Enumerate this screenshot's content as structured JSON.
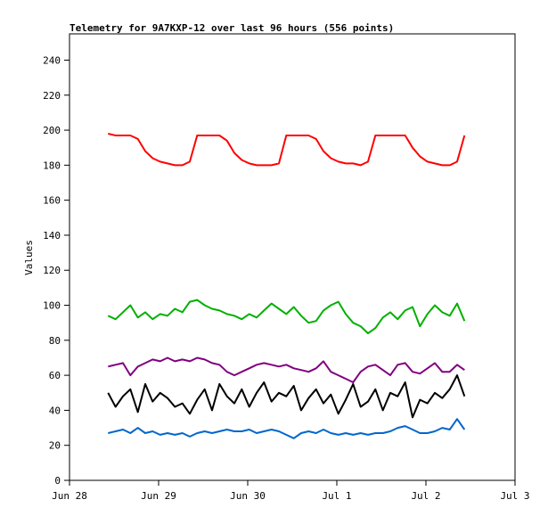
{
  "chart_data": {
    "type": "line",
    "title": "Telemetry for 9A7KXP-12 over last 96 hours (556 points)",
    "xlabel": "",
    "ylabel": "Values",
    "ylim": [
      0,
      255
    ],
    "yticks": [
      0,
      20,
      40,
      60,
      80,
      100,
      120,
      140,
      160,
      180,
      200,
      220,
      240
    ],
    "xlim_days": [
      0,
      5
    ],
    "xtick_labels": [
      "Jun 28",
      "Jun 29",
      "Jun 30",
      "Jul 1",
      "Jul 2",
      "Jul 3"
    ],
    "x_start_hours_after_jun28": 10.4,
    "x_step_hours": 2,
    "grid": false,
    "series": [
      {
        "name": "red",
        "color": "#ff0000",
        "values": [
          198,
          197,
          197,
          197,
          195,
          188,
          184,
          182,
          181,
          180,
          180,
          182,
          197,
          197,
          197,
          197,
          194,
          187,
          183,
          181,
          180,
          180,
          180,
          181,
          197,
          197,
          197,
          197,
          195,
          188,
          184,
          182,
          181,
          181,
          180,
          182,
          197,
          197,
          197,
          197,
          197,
          190,
          185,
          182,
          181,
          180,
          180,
          182,
          197
        ]
      },
      {
        "name": "green",
        "color": "#00b000",
        "values": [
          94,
          92,
          96,
          100,
          93,
          96,
          92,
          95,
          94,
          98,
          96,
          102,
          103,
          100,
          98,
          97,
          95,
          94,
          92,
          95,
          93,
          97,
          101,
          98,
          95,
          99,
          94,
          90,
          91,
          97,
          100,
          102,
          95,
          90,
          88,
          84,
          87,
          93,
          96,
          92,
          97,
          99,
          88,
          95,
          100,
          96,
          94,
          101,
          91
        ]
      },
      {
        "name": "purple",
        "color": "#800080",
        "values": [
          65,
          66,
          67,
          60,
          65,
          67,
          69,
          68,
          70,
          68,
          69,
          68,
          70,
          69,
          67,
          66,
          62,
          60,
          62,
          64,
          66,
          67,
          66,
          65,
          66,
          64,
          63,
          62,
          64,
          68,
          62,
          60,
          58,
          56,
          62,
          65,
          66,
          63,
          60,
          66,
          67,
          62,
          61,
          64,
          67,
          62,
          62,
          66,
          63
        ]
      },
      {
        "name": "black",
        "color": "#000000",
        "values": [
          50,
          42,
          48,
          52,
          39,
          55,
          45,
          50,
          47,
          42,
          44,
          38,
          46,
          52,
          40,
          55,
          48,
          44,
          52,
          42,
          50,
          56,
          45,
          50,
          48,
          54,
          40,
          47,
          52,
          44,
          49,
          38,
          46,
          55,
          42,
          45,
          52,
          40,
          50,
          48,
          56,
          36,
          46,
          44,
          50,
          47,
          52,
          60,
          48
        ]
      },
      {
        "name": "blue",
        "color": "#0066cc",
        "values": [
          27,
          28,
          29,
          27,
          30,
          27,
          28,
          26,
          27,
          26,
          27,
          25,
          27,
          28,
          27,
          28,
          29,
          28,
          28,
          29,
          27,
          28,
          29,
          28,
          26,
          24,
          27,
          28,
          27,
          29,
          27,
          26,
          27,
          26,
          27,
          26,
          27,
          27,
          28,
          30,
          31,
          29,
          27,
          27,
          28,
          30,
          29,
          35,
          29
        ]
      }
    ]
  }
}
